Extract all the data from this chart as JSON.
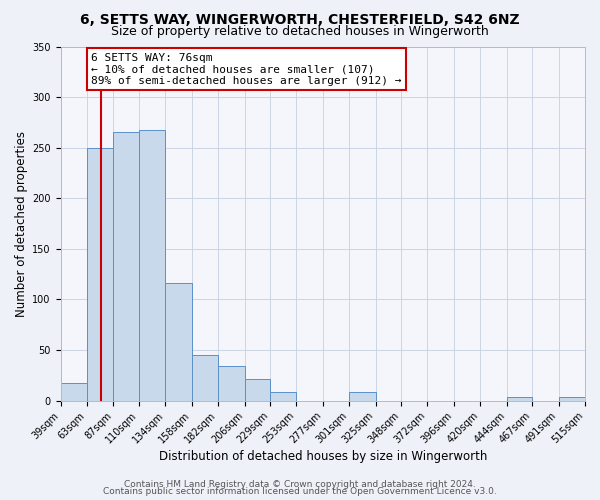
{
  "title": "6, SETTS WAY, WINGERWORTH, CHESTERFIELD, S42 6NZ",
  "subtitle": "Size of property relative to detached houses in Wingerworth",
  "xlabel": "Distribution of detached houses by size in Wingerworth",
  "ylabel": "Number of detached properties",
  "bar_edges": [
    39,
    63,
    87,
    110,
    134,
    158,
    182,
    206,
    229,
    253,
    277,
    301,
    325,
    348,
    372,
    396,
    420,
    444,
    467,
    491,
    515
  ],
  "bar_heights": [
    17,
    250,
    265,
    267,
    116,
    45,
    34,
    21,
    9,
    0,
    0,
    9,
    0,
    0,
    0,
    0,
    0,
    4,
    0,
    4
  ],
  "bar_color": "#c9d9ec",
  "bar_edge_color": "#5b8fc9",
  "vline_x": 76,
  "vline_color": "#cc0000",
  "annotation_title": "6 SETTS WAY: 76sqm",
  "annotation_line1": "← 10% of detached houses are smaller (107)",
  "annotation_line2": "89% of semi-detached houses are larger (912) →",
  "annotation_box_color": "#ffffff",
  "annotation_box_edge_color": "#cc0000",
  "ylim": [
    0,
    350
  ],
  "yticks": [
    0,
    50,
    100,
    150,
    200,
    250,
    300,
    350
  ],
  "tick_labels": [
    "39sqm",
    "63sqm",
    "87sqm",
    "110sqm",
    "134sqm",
    "158sqm",
    "182sqm",
    "206sqm",
    "229sqm",
    "253sqm",
    "277sqm",
    "301sqm",
    "325sqm",
    "348sqm",
    "372sqm",
    "396sqm",
    "420sqm",
    "444sqm",
    "467sqm",
    "491sqm",
    "515sqm"
  ],
  "footer1": "Contains HM Land Registry data © Crown copyright and database right 2024.",
  "footer2": "Contains public sector information licensed under the Open Government Licence v3.0.",
  "bg_color": "#eef2f8",
  "plot_bg_color": "#f4f6fc",
  "grid_color": "#cdd5e5",
  "title_fontsize": 10,
  "subtitle_fontsize": 9,
  "label_fontsize": 8.5,
  "tick_fontsize": 7,
  "footer_fontsize": 6.5,
  "annotation_fontsize": 8
}
